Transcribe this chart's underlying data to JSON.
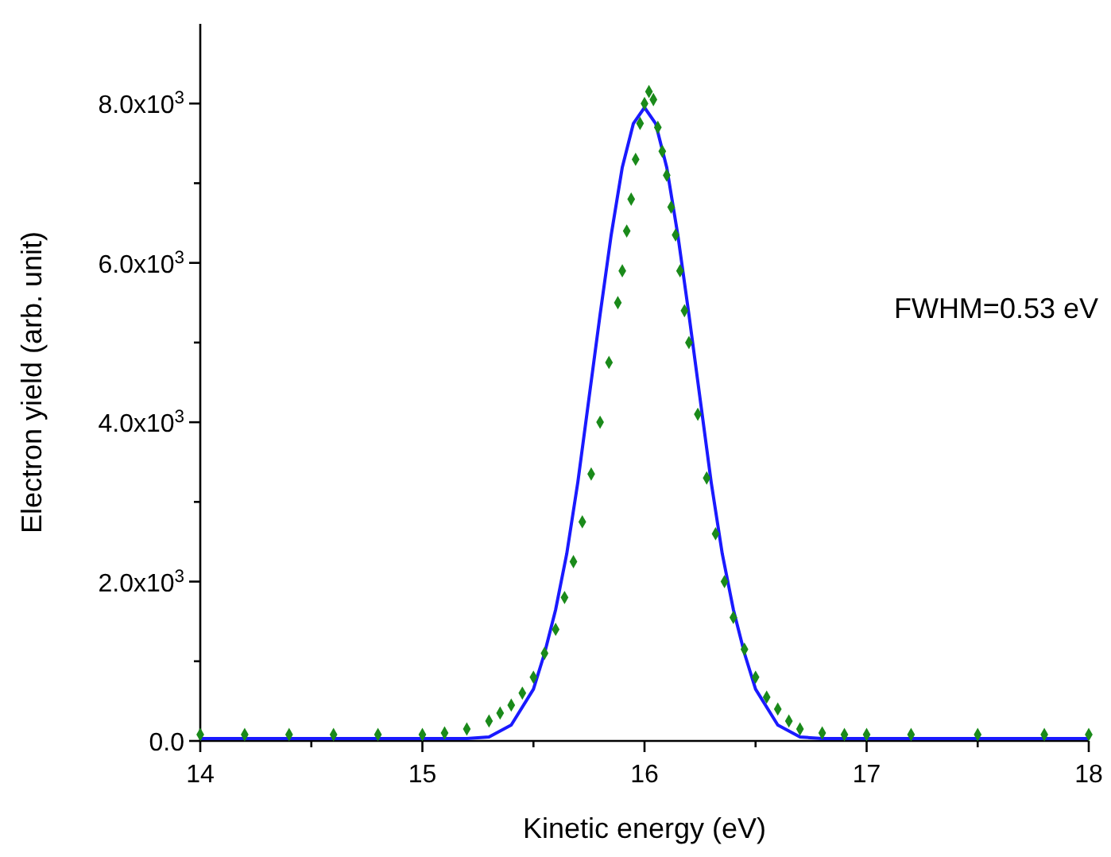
{
  "chart_data": {
    "type": "scatter",
    "xlabel": "Kinetic energy (eV)",
    "ylabel": "Electron yield (arb. unit)",
    "annotations": [
      "FWHM=0.53 eV"
    ],
    "xlim": [
      14,
      18
    ],
    "ylim": [
      0,
      9000
    ],
    "xticks": [
      14,
      {
        "value": 14.5,
        "label": null
      },
      15,
      {
        "value": 15.5,
        "label": null
      },
      16,
      {
        "value": 16.5,
        "label": null
      },
      17,
      {
        "value": 17.5,
        "label": null
      },
      18
    ],
    "yticks": [
      {
        "value": 0,
        "label": "0.0"
      },
      {
        "value": 1000,
        "label": null
      },
      {
        "value": 2000,
        "label": "2.0x10$^{3}$"
      },
      {
        "value": 3000,
        "label": null
      },
      {
        "value": 4000,
        "label": "4.0x10$^{3}$"
      },
      {
        "value": 5000,
        "label": null
      },
      {
        "value": 6000,
        "label": "6.0x10$^{3}$"
      },
      {
        "value": 7000,
        "label": null
      },
      {
        "value": 8000,
        "label": "8.0x10$^{3}$"
      }
    ],
    "grid": false,
    "series": [
      {
        "marker": "diamond",
        "color": "#1a8a1a",
        "x": [
          14.0,
          14.2,
          14.4,
          14.6,
          14.8,
          15.0,
          15.1,
          15.2,
          15.3,
          15.35,
          15.4,
          15.45,
          15.5,
          15.55,
          15.6,
          15.64,
          15.68,
          15.72,
          15.76,
          15.8,
          15.84,
          15.88,
          15.9,
          15.92,
          15.94,
          15.96,
          15.98,
          16.0,
          16.02,
          16.04,
          16.06,
          16.08,
          16.1,
          16.12,
          16.14,
          16.16,
          16.18,
          16.2,
          16.24,
          16.28,
          16.32,
          16.36,
          16.4,
          16.45,
          16.5,
          16.55,
          16.6,
          16.65,
          16.7,
          16.8,
          16.9,
          17.0,
          17.2,
          17.5,
          17.8,
          18.0
        ],
        "values": [
          80,
          80,
          80,
          80,
          80,
          80,
          100,
          150,
          250,
          350,
          450,
          600,
          800,
          1100,
          1400,
          1800,
          2250,
          2750,
          3350,
          4000,
          4750,
          5500,
          5900,
          6400,
          6800,
          7300,
          7750,
          8000,
          8150,
          8050,
          7700,
          7400,
          7100,
          6700,
          6350,
          5900,
          5400,
          5000,
          4100,
          3300,
          2600,
          2000,
          1550,
          1150,
          800,
          550,
          400,
          250,
          150,
          100,
          80,
          80,
          80,
          80,
          80,
          80
        ]
      },
      {
        "type": "line",
        "marker": "none",
        "line_style": "solid",
        "color": "#1a1aff",
        "x": [
          14.0,
          14.8,
          15.0,
          15.2,
          15.3,
          15.4,
          15.5,
          15.55,
          15.6,
          15.65,
          15.7,
          15.75,
          15.8,
          15.85,
          15.9,
          15.95,
          16.0,
          16.05,
          16.1,
          16.15,
          16.2,
          16.25,
          16.3,
          16.35,
          16.4,
          16.45,
          16.5,
          16.6,
          16.7,
          16.8,
          17.0,
          18.0
        ],
        "values": [
          30,
          30,
          30,
          30,
          50,
          200,
          650,
          1100,
          1650,
          2350,
          3250,
          4300,
          5350,
          6350,
          7200,
          7750,
          7950,
          7750,
          7200,
          6350,
          5350,
          4300,
          3250,
          2350,
          1650,
          1100,
          650,
          200,
          50,
          30,
          30,
          30
        ]
      }
    ]
  }
}
